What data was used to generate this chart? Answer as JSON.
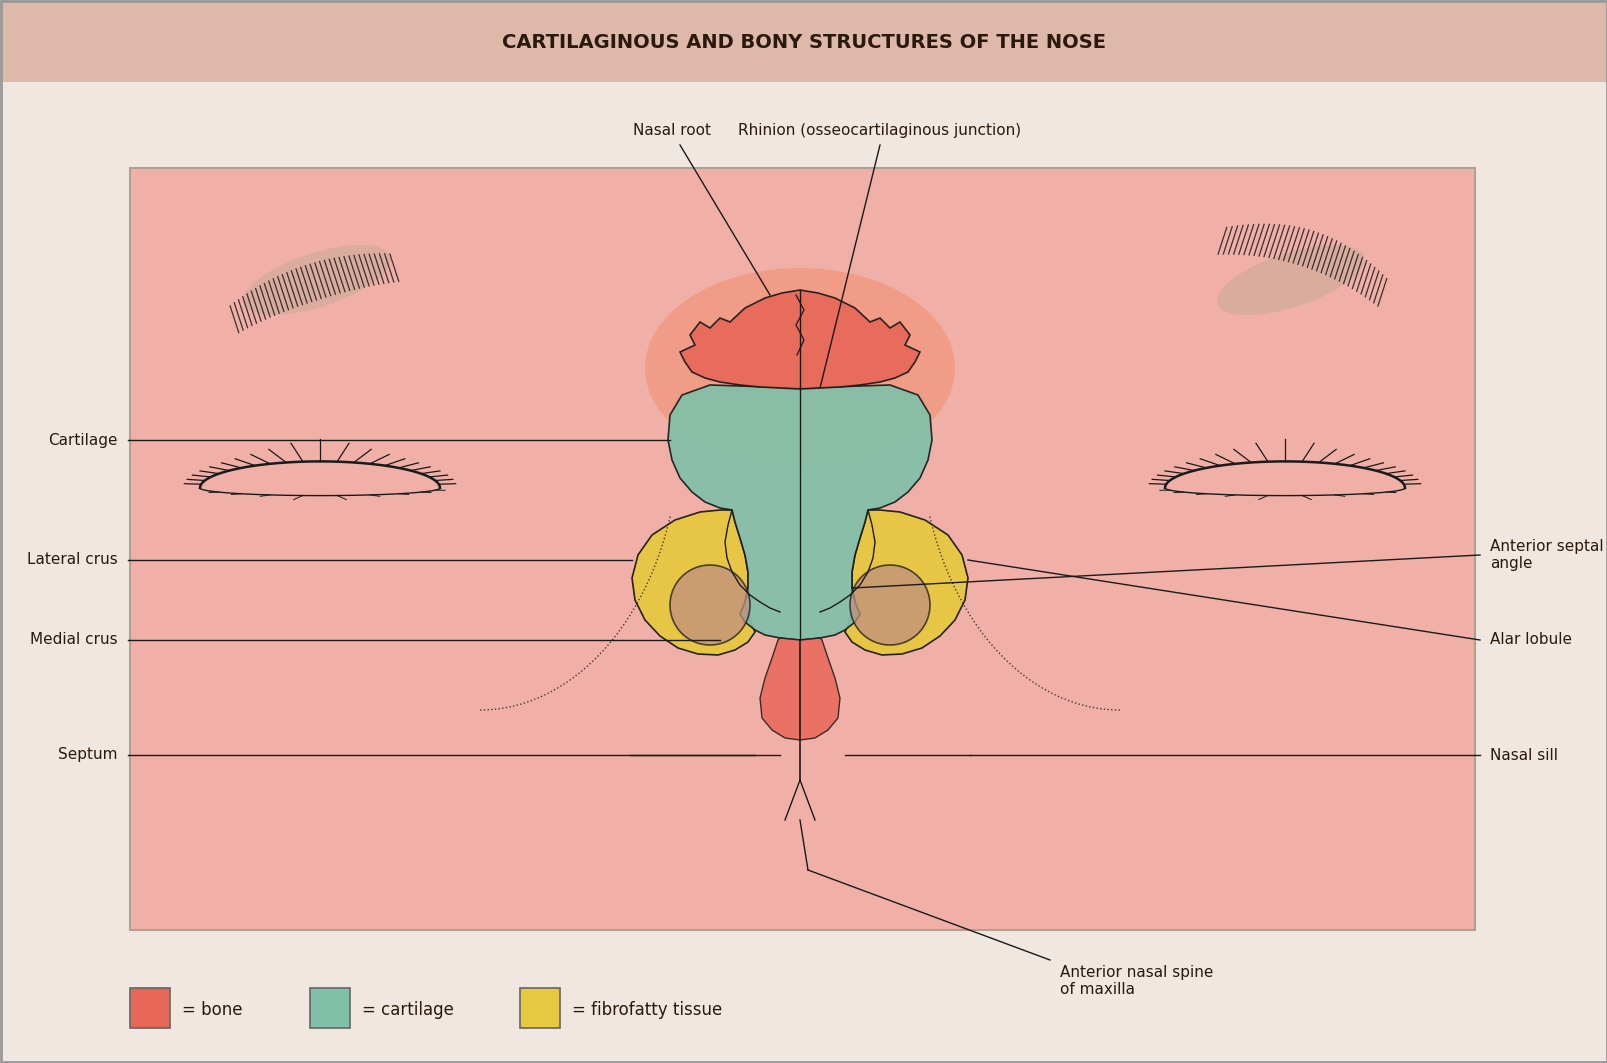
{
  "title": "CARTILAGINOUS AND BONY STRUCTURES OF THE NOSE",
  "title_fontsize": 14,
  "title_color": "#2a1a0e",
  "bg_outer": "#f0e8e0",
  "bg_header": "#deb8a8",
  "bg_inner": "#f0b0a8",
  "bone_color": "#e86858",
  "cartilage_color": "#80c0a8",
  "fibrofatty_color": "#e8c840",
  "skin_color": "#f0b0a8",
  "line_color": "#1a1a1a",
  "brow_color": "#8a7060",
  "brow_pad_color": "#c0a890",
  "legend_items": [
    {
      "label": "= bone",
      "color": "#e86858"
    },
    {
      "label": "= cartilage",
      "color": "#80c0a8"
    },
    {
      "label": "= fibrofatty tissue",
      "color": "#e8c840"
    }
  ]
}
